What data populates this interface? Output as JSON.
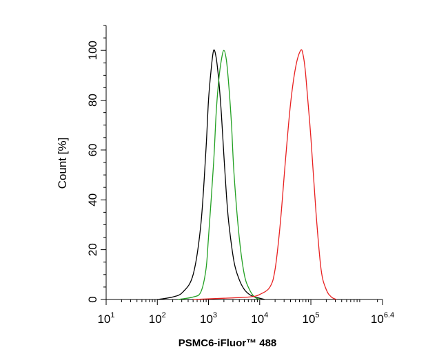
{
  "chart_data": {
    "type": "line",
    "title": "",
    "xlabel": "PSMC6-iFluor™ 488",
    "ylabel": "Count [%]",
    "x_scale": "log10",
    "xlim": [
      10,
      2511886
    ],
    "ylim": [
      0,
      110
    ],
    "grid": false,
    "legend": "none",
    "x_ticks": [
      {
        "value": 10,
        "base": "10",
        "exp": "1"
      },
      {
        "value": 100,
        "base": "10",
        "exp": "2"
      },
      {
        "value": 1000,
        "base": "10",
        "exp": "3"
      },
      {
        "value": 10000,
        "base": "10",
        "exp": "4"
      },
      {
        "value": 100000,
        "base": "10",
        "exp": "5"
      },
      {
        "value": 2511886,
        "base": "10",
        "exp": "6.4"
      }
    ],
    "y_ticks": [
      "0",
      "20",
      "40",
      "60",
      "80",
      "100"
    ],
    "series": [
      {
        "color": "#000000",
        "x": [
          100,
          200,
          316,
          501,
          708,
          891,
          1000,
          1122,
          1259,
          1413,
          1585,
          1778,
          1995,
          2239,
          2512,
          3162,
          3981,
          5012,
          6310,
          7943,
          10000,
          12589
        ],
        "y": [
          0,
          1,
          3,
          10,
          30,
          60,
          80,
          92,
          100,
          97,
          88,
          75,
          58,
          42,
          30,
          15,
          8,
          4,
          2,
          1,
          0.5,
          0
        ]
      },
      {
        "color": "#22a022",
        "x": [
          251,
          501,
          708,
          891,
          1000,
          1259,
          1413,
          1585,
          1778,
          1995,
          2239,
          2512,
          2818,
          3162,
          3981,
          5012,
          6310,
          7943,
          10000
        ],
        "y": [
          0,
          1,
          3,
          12,
          25,
          55,
          75,
          88,
          96,
          100,
          96,
          85,
          70,
          50,
          25,
          10,
          4,
          1,
          0
        ]
      },
      {
        "color": "#e82020",
        "x": [
          501,
          2000,
          6310,
          10000,
          15849,
          19953,
          25119,
          31623,
          39811,
          50119,
          63096,
          70795,
          79433,
          100000,
          125893,
          158489,
          199526,
          251189,
          316228
        ],
        "y": [
          0,
          0.5,
          1,
          2,
          5,
          12,
          30,
          55,
          78,
          93,
          100,
          98,
          90,
          65,
          35,
          12,
          4,
          1,
          0
        ]
      }
    ]
  }
}
